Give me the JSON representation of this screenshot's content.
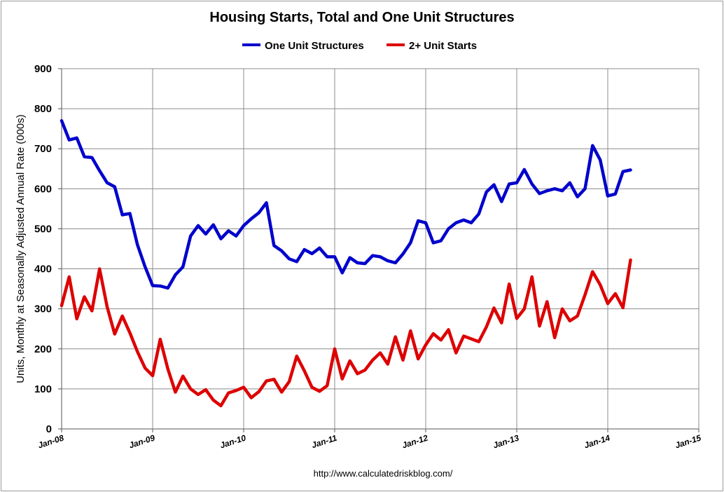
{
  "chart_data": {
    "type": "line",
    "title": "Housing Starts, Total and One Unit Structures",
    "ylabel": "Units, Monthly at Seasonally Adjusted Annual Rate (000s)",
    "xlabel": "",
    "ylim": [
      0,
      900
    ],
    "y_ticks": [
      "0",
      "100",
      "200",
      "300",
      "400",
      "500",
      "600",
      "700",
      "800",
      "900"
    ],
    "x_ticks": [
      "Jan-08",
      "Jan-09",
      "Jan-10",
      "Jan-11",
      "Jan-12",
      "Jan-13",
      "Jan-14",
      "Jan-15"
    ],
    "x_start": "Jan-08",
    "x_end": "Jan-15",
    "grid": true,
    "legend_position": "top",
    "source": "http://www.calculatedriskblog.com/",
    "series": [
      {
        "name": "One Unit Structures",
        "color": "#0000cc",
        "values": [
          770,
          722,
          727,
          680,
          678,
          645,
          615,
          605,
          535,
          538,
          460,
          405,
          358,
          357,
          352,
          385,
          405,
          482,
          508,
          487,
          510,
          475,
          495,
          482,
          508,
          525,
          540,
          565,
          458,
          445,
          425,
          418,
          448,
          438,
          452,
          430,
          430,
          390,
          428,
          415,
          413,
          433,
          430,
          420,
          415,
          437,
          465,
          520,
          515,
          465,
          470,
          500,
          515,
          522,
          515,
          537,
          592,
          610,
          568,
          612,
          615,
          648,
          612,
          588,
          595,
          600,
          595,
          615,
          580,
          600,
          708,
          672,
          582,
          587,
          643,
          647
        ]
      },
      {
        "name": "2+ Unit Starts",
        "color": "#dd0000",
        "values": [
          308,
          380,
          275,
          330,
          295,
          400,
          305,
          237,
          282,
          240,
          193,
          152,
          133,
          224,
          150,
          92,
          132,
          100,
          86,
          98,
          72,
          58,
          90,
          96,
          104,
          78,
          93,
          120,
          124,
          92,
          118,
          182,
          145,
          104,
          94,
          108,
          200,
          125,
          170,
          138,
          147,
          172,
          190,
          162,
          230,
          172,
          245,
          175,
          210,
          238,
          222,
          248,
          190,
          232,
          225,
          218,
          255,
          302,
          265,
          362,
          276,
          300,
          380,
          257,
          318,
          228,
          300,
          270,
          282,
          335,
          393,
          360,
          313,
          338,
          303,
          422
        ]
      }
    ]
  }
}
